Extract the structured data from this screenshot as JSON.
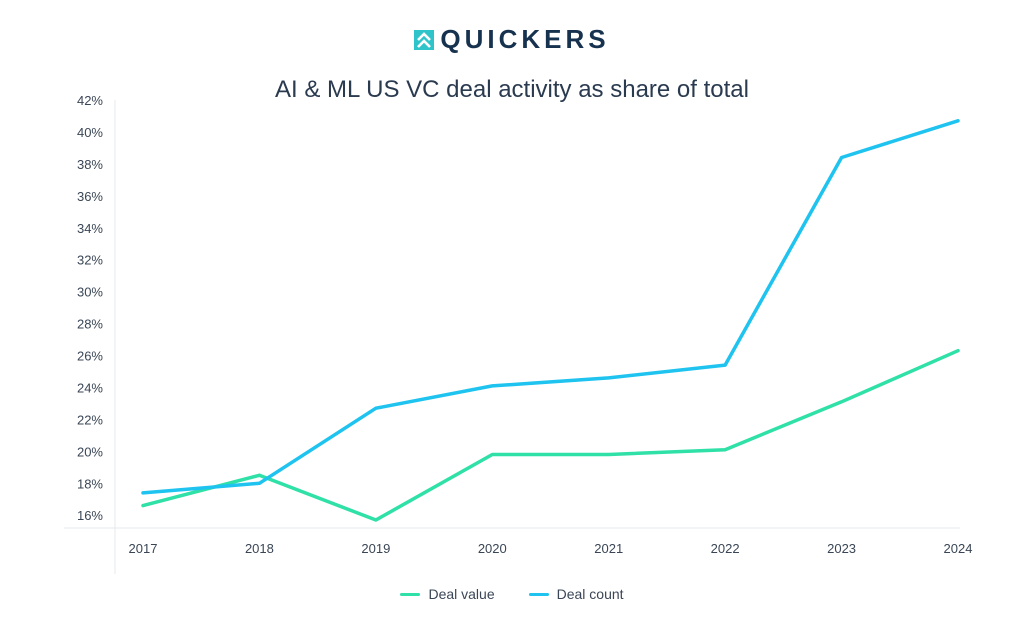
{
  "brand": {
    "name": "QUICKERS",
    "logo_icon": "chevrons-up-icon",
    "logo_color": "#2ec4c9"
  },
  "chart_data": {
    "type": "line",
    "title": "AI & ML US VC deal activity as share of total",
    "xlabel": "",
    "ylabel": "",
    "categories": [
      "2017",
      "2018",
      "2019",
      "2020",
      "2021",
      "2022",
      "2023",
      "2024"
    ],
    "y_ticks": [
      "16%",
      "18%",
      "20%",
      "22%",
      "24%",
      "26%",
      "28%",
      "30%",
      "32%",
      "34%",
      "36%",
      "38%",
      "40%",
      "42%"
    ],
    "ylim": [
      15.2,
      42
    ],
    "grid": false,
    "legend_position": "bottom-center",
    "series": [
      {
        "name": "Deal value",
        "color": "#2fe0a7",
        "values": [
          16.6,
          18.5,
          15.7,
          19.8,
          19.8,
          20.1,
          23.1,
          26.3
        ]
      },
      {
        "name": "Deal count",
        "color": "#1ec3ef",
        "values": [
          17.4,
          18.0,
          22.7,
          24.1,
          24.6,
          25.4,
          38.4,
          40.7
        ]
      }
    ]
  }
}
